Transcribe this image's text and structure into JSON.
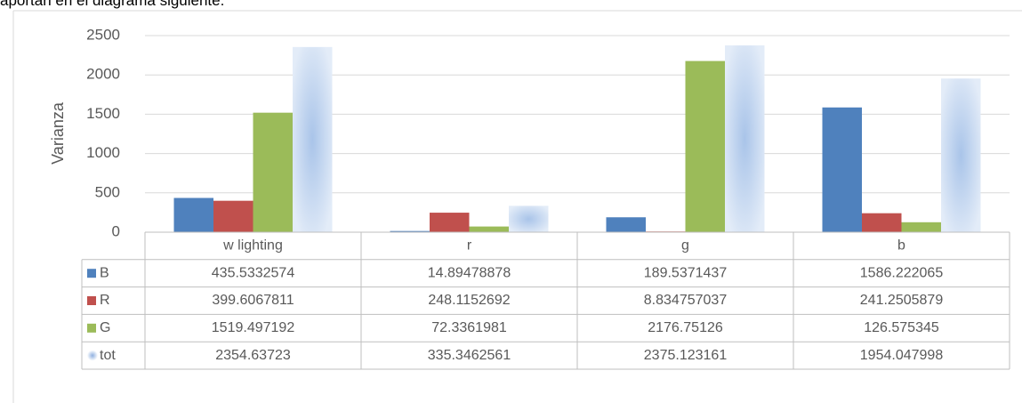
{
  "caption": "aportan en el diagrama siguiente.",
  "chart_data": {
    "type": "bar",
    "y_label": "Varianza",
    "categories": [
      "w lighting",
      "r",
      "g",
      "b"
    ],
    "series": [
      {
        "name": "B",
        "color": "#4f81bd",
        "values": [
          435.5332574,
          14.89478878,
          189.5371437,
          1586.222065
        ]
      },
      {
        "name": "R",
        "color": "#c0504d",
        "values": [
          399.6067811,
          248.1152692,
          8.834757037,
          241.2505879
        ]
      },
      {
        "name": "G",
        "color": "#9bbb59",
        "values": [
          1519.497192,
          72.3361981,
          2176.75126,
          126.575345
        ]
      },
      {
        "name": "tot",
        "color": "#b9cfec",
        "values": [
          2354.63723,
          335.3462561,
          2375.123161,
          1954.047998
        ]
      }
    ],
    "ylim": [
      0,
      2500
    ],
    "yticks": [
      0,
      500,
      1000,
      1500,
      2000,
      2500
    ],
    "grid": true,
    "data_table": true
  }
}
